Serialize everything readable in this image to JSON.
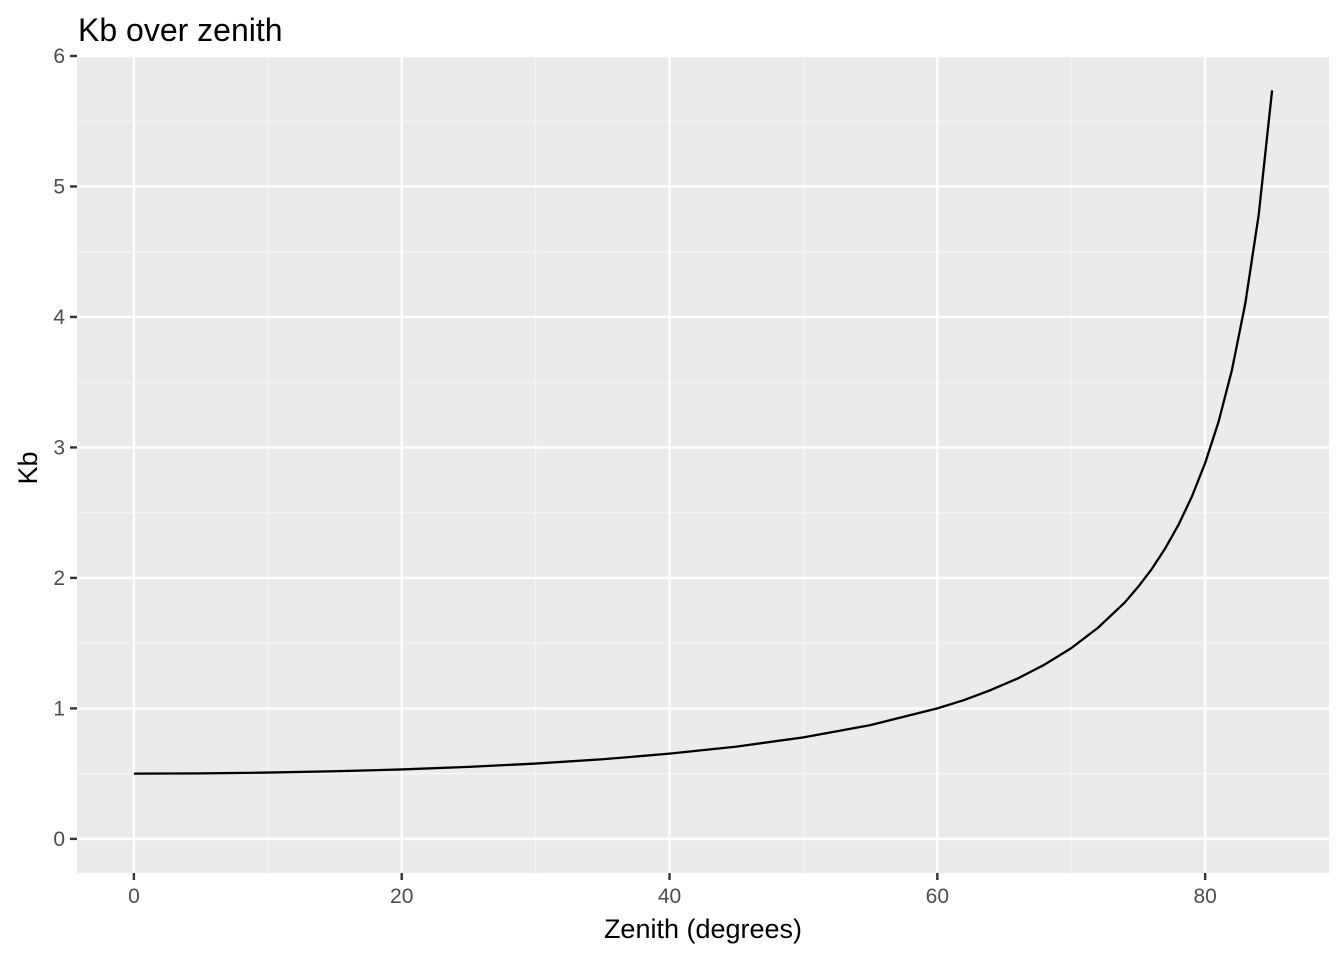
{
  "chart_data": {
    "type": "line",
    "title": "Kb over zenith",
    "subtitle": "",
    "xlabel": "Zenith (degrees)",
    "ylabel": "Kb",
    "xlim": [
      -4.25,
      89.25
    ],
    "ylim": [
      -0.2616,
      6.0
    ],
    "x_ticks": [
      0,
      20,
      40,
      60,
      80
    ],
    "y_ticks": [
      0,
      1,
      2,
      3,
      4,
      5,
      6
    ],
    "x_minor_ticks": [
      10,
      30,
      50,
      70
    ],
    "y_minor_ticks": [
      0.5,
      1.5,
      2.5,
      3.5,
      4.5,
      5.5
    ],
    "grid": true,
    "legend": "none",
    "colors": {
      "panel_background": "#ebebeb",
      "grid_major": "#ffffff",
      "grid_minor": "#f5f5f5",
      "line": "#000000",
      "tick_label": "#4d4d4d",
      "tick_mark": "#333333"
    },
    "series": [
      {
        "x": [
          0,
          5,
          10,
          15,
          20,
          25,
          30,
          35,
          40,
          45,
          50,
          55,
          60,
          62,
          64,
          66,
          68,
          70,
          72,
          74,
          75,
          76,
          77,
          78,
          79,
          80,
          81,
          82,
          83,
          84,
          85
        ],
        "y": [
          0.5,
          0.502,
          0.508,
          0.518,
          0.532,
          0.552,
          0.577,
          0.61,
          0.653,
          0.707,
          0.778,
          0.872,
          1.0,
          1.064,
          1.141,
          1.229,
          1.335,
          1.462,
          1.618,
          1.812,
          1.932,
          2.066,
          2.223,
          2.405,
          2.621,
          2.88,
          3.196,
          3.593,
          4.104,
          4.783,
          5.737
        ]
      }
    ]
  }
}
